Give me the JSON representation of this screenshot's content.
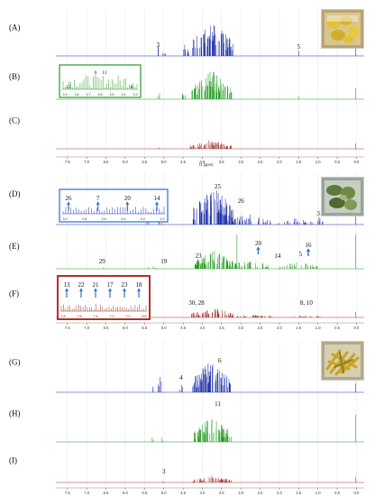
{
  "chart_data": {
    "type": "line",
    "xlabel": "f1 (ppm)",
    "x_ticks": [
      "7.5",
      "7.0",
      "6.5",
      "6.0",
      "5.5",
      "5.0",
      "4.5",
      "4.0",
      "3.5",
      "3.0",
      "2.5",
      "2.0",
      "1.5",
      "1.0",
      "0.5",
      "0.0"
    ],
    "xlim": [
      7.8,
      -0.2
    ],
    "colors": {
      "blue": "#1f2fa8",
      "green": "#1f9a1f",
      "red": "#a0302a",
      "frame": "#2a9a2a",
      "box_blue": "#2a6fc9",
      "box_red": "#b0302a",
      "arrow": "#3a72c8"
    },
    "panels": [
      {
        "label": "(A)",
        "color": "blue",
        "pattern": "A",
        "annotations": [
          {
            "text": "3",
            "ppm": 5.15
          },
          {
            "text": "5",
            "ppm": 1.5
          }
        ]
      },
      {
        "label": "(B)",
        "color": "green",
        "pattern": "B",
        "annotations": [],
        "inset": {
          "frame": "frame",
          "labels": [
            "15",
            "6",
            "11",
            "6"
          ],
          "ticks": [
            "3.9",
            "3.8",
            "3.7",
            "3.6",
            "3.5",
            "3.4",
            "3.3"
          ]
        }
      },
      {
        "label": "(C)",
        "color": "red",
        "pattern": "C",
        "annotations": []
      },
      {
        "label": "(D)",
        "color": "blue",
        "pattern": "D",
        "annotations": [
          {
            "text": "25",
            "ppm": 3.6
          },
          {
            "text": "26",
            "ppm": 3.0
          },
          {
            "text": "31",
            "ppm": 0.95
          }
        ],
        "inset": {
          "frame": "box_blue",
          "labels": [
            "26",
            "7",
            "20",
            "14"
          ],
          "ticks": [
            "3.0",
            "2.8",
            "2.6",
            "2.4",
            "2.2",
            "2.0"
          ]
        }
      },
      {
        "label": "(E)",
        "color": "green",
        "pattern": "E",
        "annotations": [
          {
            "text": "29",
            "ppm": 6.6
          },
          {
            "text": "19",
            "ppm": 5.0
          },
          {
            "text": "23",
            "ppm": 4.1
          },
          {
            "text": "20",
            "ppm": 2.55,
            "arrow": true
          },
          {
            "text": "14",
            "ppm": 2.05
          },
          {
            "text": "16",
            "ppm": 1.25,
            "arrow": true
          },
          {
            "text": "5",
            "ppm": 1.45
          }
        ]
      },
      {
        "label": "(F)",
        "color": "red",
        "pattern": "F",
        "annotations": [
          {
            "text": "30, 28",
            "ppm": 4.15
          },
          {
            "text": "8, 10",
            "ppm": 1.3
          }
        ],
        "inset": {
          "frame": "box_red",
          "labels": [
            "13",
            "22",
            "21",
            "17",
            "23",
            "18"
          ],
          "ticks": [
            "7.8",
            "7.6",
            "7.4",
            "7.2",
            "7.0",
            "6.8"
          ]
        }
      },
      {
        "label": "(G)",
        "color": "blue",
        "pattern": "G",
        "annotations": [
          {
            "text": "4",
            "ppm": 4.55
          },
          {
            "text": "6",
            "ppm": 3.55
          }
        ]
      },
      {
        "label": "(H)",
        "color": "green",
        "pattern": "H",
        "annotations": [
          {
            "text": "11",
            "ppm": 3.6
          }
        ]
      },
      {
        "label": "(I)",
        "color": "red",
        "pattern": "I",
        "annotations": [
          {
            "text": "3",
            "ppm": 5.0
          }
        ]
      }
    ]
  }
}
